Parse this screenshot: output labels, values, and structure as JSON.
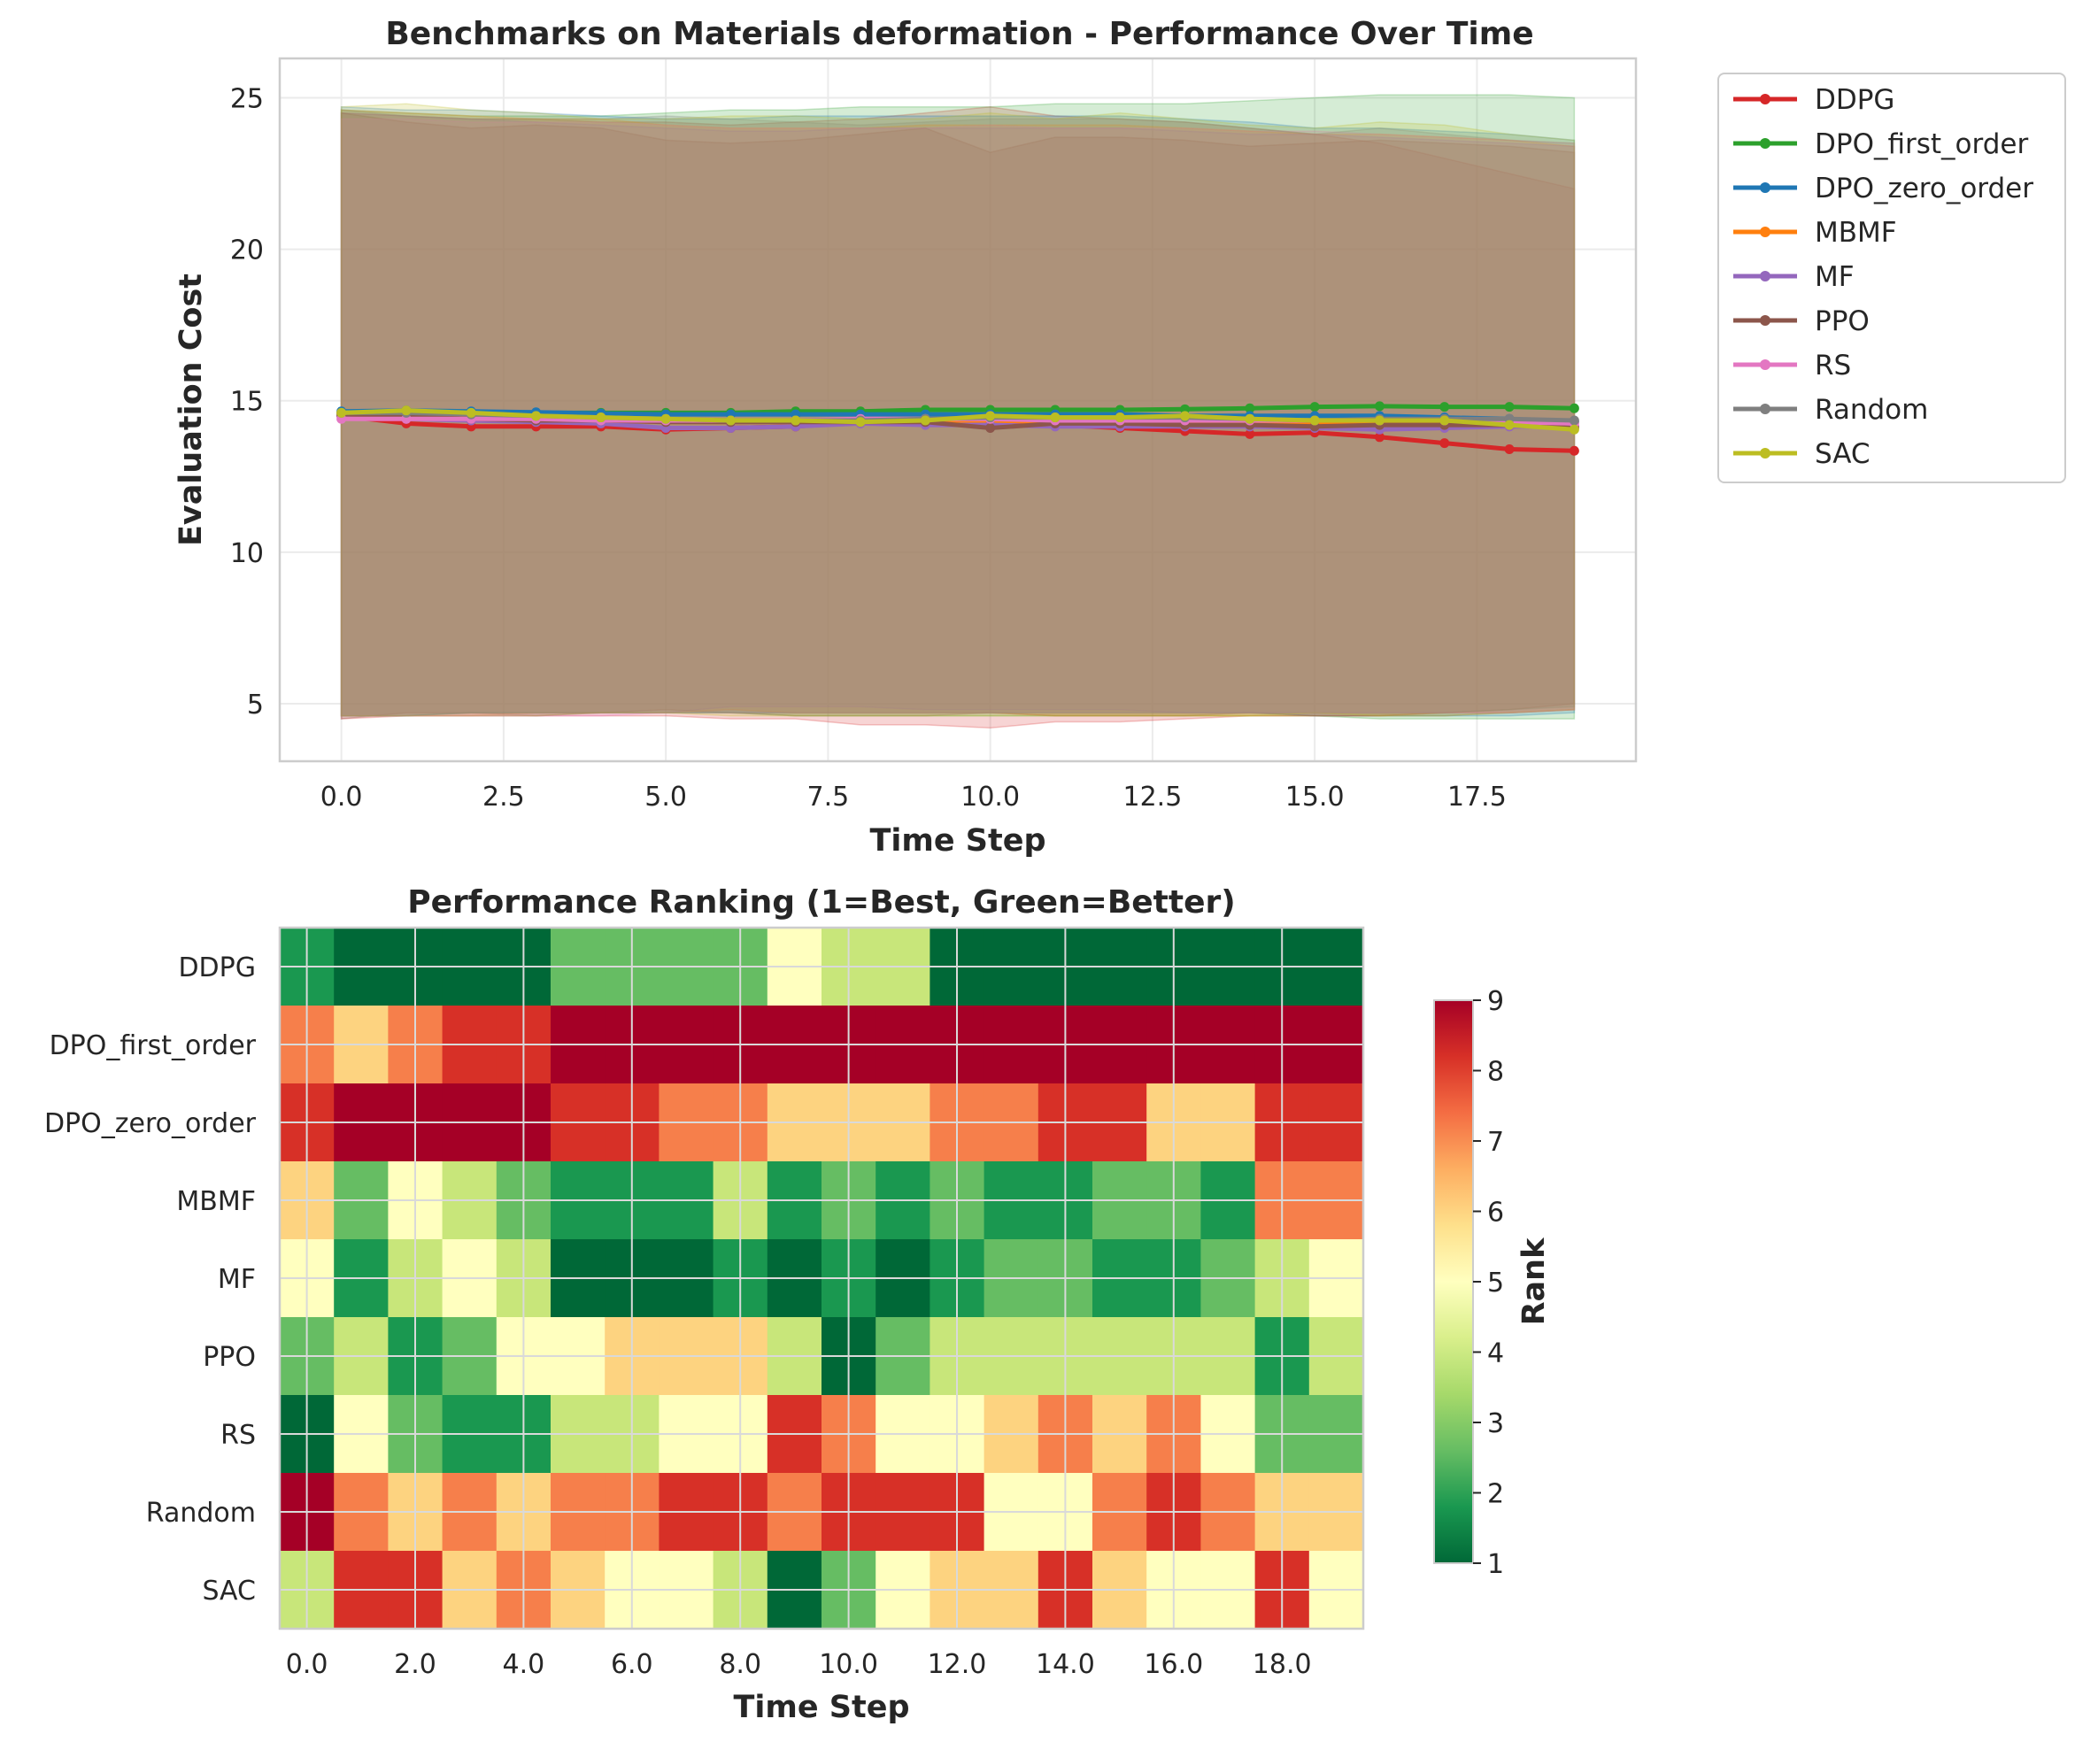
{
  "chart_data": [
    {
      "type": "line",
      "title": "Benchmarks on Materials deformation - Performance Over Time",
      "xlabel": "Time Step",
      "ylabel": "Evaluation Cost",
      "xlim": [
        -0.95,
        19.95
      ],
      "ylim": [
        3.1,
        26.3
      ],
      "xticks": [
        0.0,
        2.5,
        5.0,
        7.5,
        10.0,
        12.5,
        15.0,
        17.5
      ],
      "xtick_labels": [
        "0.0",
        "2.5",
        "5.0",
        "7.5",
        "10.0",
        "12.5",
        "15.0",
        "17.5"
      ],
      "yticks": [
        5,
        10,
        15,
        20,
        25
      ],
      "ytick_labels": [
        "5",
        "10",
        "15",
        "20",
        "25"
      ],
      "grid": true,
      "legend": "outside-right",
      "band_opacity": 0.2,
      "x": [
        0,
        1,
        2,
        3,
        4,
        5,
        6,
        7,
        8,
        9,
        10,
        11,
        12,
        13,
        14,
        15,
        16,
        17,
        18,
        19
      ],
      "series": [
        {
          "name": "DDPG",
          "color": "#d62728",
          "values": [
            14.5,
            14.25,
            14.15,
            14.15,
            14.15,
            14.05,
            14.1,
            14.15,
            14.3,
            14.3,
            14.4,
            14.2,
            14.1,
            14.0,
            13.9,
            13.95,
            13.8,
            13.6,
            13.4,
            13.35
          ],
          "upper": [
            24.5,
            24.4,
            24.3,
            24.3,
            24.2,
            24.2,
            24.1,
            24.2,
            24.3,
            24.5,
            24.7,
            24.4,
            24.3,
            24.2,
            24.0,
            23.8,
            23.5,
            23.0,
            22.5,
            22.0
          ],
          "lower": [
            4.5,
            4.6,
            4.6,
            4.6,
            4.6,
            4.6,
            4.5,
            4.5,
            4.3,
            4.3,
            4.2,
            4.4,
            4.4,
            4.5,
            4.6,
            4.6,
            4.6,
            4.6,
            4.7,
            4.8
          ]
        },
        {
          "name": "DPO_first_order",
          "color": "#2ca02c",
          "values": [
            14.6,
            14.6,
            14.6,
            14.6,
            14.6,
            14.6,
            14.6,
            14.65,
            14.65,
            14.7,
            14.7,
            14.7,
            14.7,
            14.72,
            14.75,
            14.8,
            14.82,
            14.8,
            14.8,
            14.75
          ],
          "upper": [
            24.6,
            24.5,
            24.4,
            24.4,
            24.4,
            24.5,
            24.6,
            24.6,
            24.7,
            24.7,
            24.7,
            24.8,
            24.8,
            24.8,
            24.9,
            25.0,
            25.1,
            25.1,
            25.1,
            25.0
          ],
          "lower": [
            4.6,
            4.6,
            4.7,
            4.7,
            4.7,
            4.7,
            4.7,
            4.6,
            4.6,
            4.6,
            4.6,
            4.6,
            4.6,
            4.6,
            4.6,
            4.6,
            4.5,
            4.5,
            4.5,
            4.5
          ]
        },
        {
          "name": "DPO_zero_order",
          "color": "#1f77b4",
          "values": [
            14.65,
            14.68,
            14.65,
            14.62,
            14.58,
            14.55,
            14.55,
            14.55,
            14.55,
            14.55,
            14.55,
            14.55,
            14.55,
            14.5,
            14.5,
            14.5,
            14.5,
            14.45,
            14.4,
            14.3
          ],
          "upper": [
            24.7,
            24.6,
            24.6,
            24.5,
            24.4,
            24.3,
            24.3,
            24.4,
            24.4,
            24.4,
            24.4,
            24.4,
            24.4,
            24.3,
            24.2,
            24.0,
            24.0,
            23.9,
            23.8,
            23.6
          ],
          "lower": [
            4.6,
            4.6,
            4.7,
            4.7,
            4.7,
            4.7,
            4.7,
            4.7,
            4.7,
            4.7,
            4.7,
            4.7,
            4.7,
            4.7,
            4.7,
            4.6,
            4.6,
            4.6,
            4.6,
            4.7
          ]
        },
        {
          "name": "MBMF",
          "color": "#ff7f0e",
          "values": [
            14.55,
            14.5,
            14.45,
            14.4,
            14.35,
            14.3,
            14.3,
            14.3,
            14.35,
            14.35,
            14.35,
            14.3,
            14.3,
            14.3,
            14.3,
            14.25,
            14.3,
            14.3,
            14.2,
            14.15
          ],
          "upper": [
            24.6,
            24.5,
            24.4,
            24.3,
            24.3,
            24.1,
            24.0,
            24.0,
            24.0,
            24.1,
            24.1,
            24.1,
            24.1,
            24.0,
            23.9,
            23.8,
            23.8,
            23.7,
            23.6,
            23.4
          ],
          "lower": [
            4.6,
            4.6,
            4.6,
            4.7,
            4.7,
            4.7,
            4.8,
            4.7,
            4.7,
            4.7,
            4.7,
            4.6,
            4.6,
            4.6,
            4.6,
            4.6,
            4.6,
            4.7,
            4.7,
            4.8
          ]
        },
        {
          "name": "MF",
          "color": "#9467bd",
          "values": [
            14.5,
            14.4,
            14.35,
            14.3,
            14.25,
            14.1,
            14.1,
            14.15,
            14.25,
            14.2,
            14.2,
            14.15,
            14.15,
            14.15,
            14.15,
            14.1,
            14.05,
            14.1,
            14.15,
            14.15
          ],
          "upper": [
            24.5,
            24.4,
            24.3,
            24.2,
            24.1,
            24.0,
            23.9,
            23.9,
            24.0,
            24.0,
            24.0,
            24.0,
            24.0,
            23.9,
            23.8,
            23.8,
            23.7,
            23.6,
            23.5,
            23.4
          ],
          "lower": [
            4.6,
            4.6,
            4.6,
            4.6,
            4.7,
            4.7,
            4.9,
            4.9,
            4.9,
            4.8,
            4.8,
            4.8,
            4.8,
            4.7,
            4.7,
            4.7,
            4.7,
            4.7,
            4.7,
            4.8
          ]
        },
        {
          "name": "PPO",
          "color": "#8c564b",
          "values": [
            14.55,
            14.5,
            14.4,
            14.35,
            14.35,
            14.3,
            14.3,
            14.3,
            14.3,
            14.3,
            14.1,
            14.25,
            14.25,
            14.2,
            14.2,
            14.15,
            14.2,
            14.2,
            14.2,
            14.1
          ],
          "upper": [
            24.5,
            24.2,
            24.0,
            24.1,
            24.0,
            23.6,
            23.5,
            23.6,
            23.8,
            24.0,
            23.2,
            23.7,
            23.7,
            23.6,
            23.4,
            23.5,
            23.6,
            23.5,
            23.4,
            23.2
          ],
          "lower": [
            4.5,
            4.7,
            4.7,
            4.6,
            4.7,
            4.8,
            4.7,
            4.6,
            4.6,
            4.6,
            4.7,
            4.6,
            4.6,
            4.6,
            4.7,
            4.6,
            4.6,
            4.7,
            4.8,
            5.0
          ]
        },
        {
          "name": "RS",
          "color": "#e377c2",
          "values": [
            14.4,
            14.4,
            14.4,
            14.4,
            14.35,
            14.35,
            14.35,
            14.35,
            14.4,
            14.4,
            14.4,
            14.35,
            14.35,
            14.35,
            14.35,
            14.35,
            14.35,
            14.35,
            14.3,
            14.25
          ],
          "upper": [
            24.3,
            24.3,
            24.2,
            24.2,
            24.2,
            24.1,
            24.0,
            24.0,
            24.0,
            24.0,
            24.1,
            24.0,
            24.0,
            24.0,
            23.9,
            23.9,
            23.8,
            23.7,
            23.6,
            23.5
          ],
          "lower": [
            4.6,
            4.6,
            4.6,
            4.6,
            4.6,
            4.7,
            4.7,
            4.7,
            4.7,
            4.7,
            4.7,
            4.7,
            4.7,
            4.7,
            4.7,
            4.7,
            4.7,
            4.7,
            4.7,
            4.8
          ]
        },
        {
          "name": "Random",
          "color": "#7f7f7f",
          "values": [
            14.6,
            14.6,
            14.55,
            14.5,
            14.45,
            14.4,
            14.35,
            14.35,
            14.35,
            14.4,
            14.45,
            14.45,
            14.45,
            14.45,
            14.4,
            14.35,
            14.4,
            14.4,
            14.4,
            14.35
          ],
          "upper": [
            24.6,
            24.4,
            24.3,
            24.3,
            24.3,
            24.4,
            24.3,
            24.2,
            24.1,
            24.2,
            24.3,
            24.3,
            24.3,
            24.2,
            24.0,
            23.8,
            24.0,
            23.8,
            23.6,
            23.5
          ],
          "lower": [
            4.6,
            4.6,
            4.7,
            4.7,
            4.7,
            4.7,
            4.7,
            4.7,
            4.7,
            4.7,
            4.7,
            4.7,
            4.7,
            4.7,
            4.7,
            4.7,
            4.7,
            4.7,
            4.8,
            4.9
          ]
        },
        {
          "name": "SAC",
          "color": "#bcbd22",
          "values": [
            14.6,
            14.68,
            14.6,
            14.5,
            14.45,
            14.4,
            14.35,
            14.35,
            14.3,
            14.35,
            14.5,
            14.45,
            14.45,
            14.5,
            14.4,
            14.35,
            14.35,
            14.35,
            14.2,
            14.05
          ],
          "upper": [
            24.7,
            24.8,
            24.6,
            24.5,
            24.3,
            24.3,
            24.4,
            24.4,
            24.3,
            24.3,
            24.5,
            24.3,
            24.5,
            24.3,
            24.1,
            24.0,
            24.2,
            24.1,
            23.8,
            23.6
          ],
          "lower": [
            4.6,
            4.6,
            4.6,
            4.6,
            4.7,
            4.7,
            4.6,
            4.6,
            4.6,
            4.6,
            4.6,
            4.6,
            4.6,
            4.6,
            4.6,
            4.7,
            4.6,
            4.6,
            4.7,
            4.8
          ]
        }
      ]
    },
    {
      "type": "heatmap",
      "title": "Performance Ranking (1=Best, Green=Better)",
      "xlabel": "Time Step",
      "colorbar_label": "Rank",
      "colorbar_range": [
        1,
        9
      ],
      "colorbar_ticks": [
        "1",
        "2",
        "3",
        "4",
        "5",
        "6",
        "7",
        "8",
        "9"
      ],
      "colormap": "RdYlGn_r",
      "xtick_labels": [
        "0.0",
        "2.0",
        "4.0",
        "6.0",
        "8.0",
        "10.0",
        "12.0",
        "14.0",
        "16.0",
        "18.0"
      ],
      "grid": true,
      "rows": [
        "DDPG",
        "DPO_first_order",
        "DPO_zero_order",
        "MBMF",
        "MF",
        "PPO",
        "RS",
        "Random",
        "SAC"
      ],
      "values": [
        [
          2,
          1,
          1,
          1,
          1,
          3,
          3,
          3,
          3,
          5,
          4,
          4,
          1,
          1,
          1,
          1,
          1,
          1,
          1,
          1
        ],
        [
          7,
          6,
          7,
          8,
          8,
          9,
          9,
          9,
          9,
          9,
          9,
          9,
          9,
          9,
          9,
          9,
          9,
          9,
          9,
          9
        ],
        [
          8,
          9,
          9,
          9,
          9,
          8,
          8,
          7,
          7,
          6,
          6,
          6,
          7,
          7,
          8,
          8,
          6,
          6,
          8,
          8
        ],
        [
          6,
          3,
          5,
          4,
          3,
          2,
          2,
          2,
          4,
          2,
          3,
          2,
          3,
          2,
          2,
          3,
          3,
          2,
          7,
          7
        ],
        [
          5,
          2,
          4,
          5,
          4,
          1,
          1,
          1,
          2,
          1,
          2,
          1,
          2,
          3,
          3,
          2,
          2,
          3,
          4,
          5
        ],
        [
          3,
          4,
          2,
          3,
          5,
          5,
          6,
          6,
          6,
          4,
          1,
          3,
          4,
          4,
          4,
          4,
          4,
          4,
          2,
          4
        ],
        [
          1,
          5,
          3,
          2,
          2,
          4,
          4,
          5,
          5,
          8,
          7,
          5,
          5,
          6,
          7,
          6,
          7,
          5,
          3,
          3
        ],
        [
          9,
          7,
          6,
          7,
          6,
          7,
          7,
          8,
          8,
          7,
          8,
          8,
          8,
          5,
          5,
          7,
          8,
          7,
          6,
          6
        ],
        [
          4,
          8,
          8,
          6,
          7,
          6,
          5,
          5,
          4,
          1,
          3,
          5,
          6,
          6,
          8,
          6,
          5,
          5,
          8,
          5
        ]
      ]
    }
  ]
}
